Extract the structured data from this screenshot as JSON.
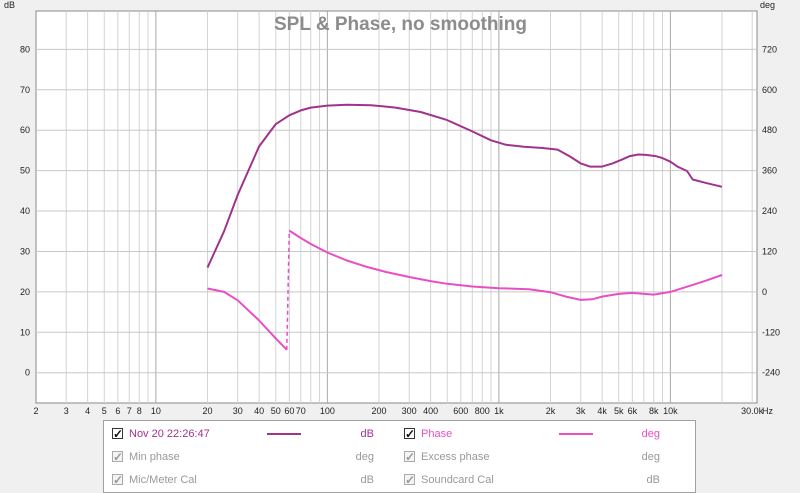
{
  "chart_data": {
    "type": "line",
    "title": "SPL & Phase, no smoothing",
    "left_axis": {
      "label": "dB",
      "min": -7.5,
      "max": 89.5,
      "ticks": [
        0,
        10,
        20,
        30,
        40,
        50,
        60,
        70,
        80
      ]
    },
    "right_axis": {
      "label": "deg",
      "min": -330,
      "max": 834,
      "ticks": [
        -240,
        -120,
        0,
        120,
        240,
        360,
        480,
        600,
        720
      ]
    },
    "x_axis": {
      "scale": "log",
      "min": 2,
      "max": 32000,
      "unit_label": "Hz",
      "ticks": [
        {
          "v": 2,
          "t": "2"
        },
        {
          "v": 3,
          "t": "3"
        },
        {
          "v": 4,
          "t": "4"
        },
        {
          "v": 5,
          "t": "5"
        },
        {
          "v": 6,
          "t": "6"
        },
        {
          "v": 7,
          "t": "7"
        },
        {
          "v": 8,
          "t": "8"
        },
        {
          "v": 10,
          "t": "10"
        },
        {
          "v": 20,
          "t": "20"
        },
        {
          "v": 30,
          "t": "30"
        },
        {
          "v": 40,
          "t": "40"
        },
        {
          "v": 50,
          "t": "50"
        },
        {
          "v": 60,
          "t": "60"
        },
        {
          "v": 70,
          "t": "70"
        },
        {
          "v": 100,
          "t": "100"
        },
        {
          "v": 200,
          "t": "200"
        },
        {
          "v": 300,
          "t": "300"
        },
        {
          "v": 400,
          "t": "400"
        },
        {
          "v": 600,
          "t": "600"
        },
        {
          "v": 800,
          "t": "800"
        },
        {
          "v": 1000,
          "t": "1k"
        },
        {
          "v": 2000,
          "t": "2k"
        },
        {
          "v": 3000,
          "t": "3k"
        },
        {
          "v": 4000,
          "t": "4k"
        },
        {
          "v": 5000,
          "t": "5k"
        },
        {
          "v": 6000,
          "t": "6k"
        },
        {
          "v": 8000,
          "t": "8k"
        },
        {
          "v": 10000,
          "t": "10k"
        },
        {
          "v": 30000,
          "t": "30.0k"
        }
      ]
    },
    "grid": true,
    "series": [
      {
        "name": "Nov 20 22:26:47",
        "unit": "dB",
        "color": "#a0338c",
        "axis": "left",
        "points": [
          [
            20,
            26
          ],
          [
            25,
            35
          ],
          [
            30,
            44
          ],
          [
            40,
            56
          ],
          [
            50,
            61.5
          ],
          [
            60,
            63.7
          ],
          [
            70,
            64.9
          ],
          [
            80,
            65.6
          ],
          [
            100,
            66.1
          ],
          [
            130,
            66.3
          ],
          [
            180,
            66.2
          ],
          [
            250,
            65.6
          ],
          [
            350,
            64.5
          ],
          [
            500,
            62.5
          ],
          [
            700,
            59.7
          ],
          [
            900,
            57.5
          ],
          [
            1100,
            56.4
          ],
          [
            1400,
            55.9
          ],
          [
            1800,
            55.6
          ],
          [
            2200,
            55.2
          ],
          [
            2600,
            53.5
          ],
          [
            3000,
            51.8
          ],
          [
            3400,
            51
          ],
          [
            4000,
            51
          ],
          [
            4600,
            51.8
          ],
          [
            5200,
            52.7
          ],
          [
            5800,
            53.6
          ],
          [
            6500,
            54
          ],
          [
            7200,
            53.9
          ],
          [
            8200,
            53.6
          ],
          [
            9000,
            53.1
          ],
          [
            10000,
            52.2
          ],
          [
            11000,
            51
          ],
          [
            12500,
            49.9
          ],
          [
            13500,
            47.8
          ],
          [
            16000,
            47
          ],
          [
            20000,
            46
          ]
        ]
      },
      {
        "name": "Phase",
        "unit": "deg",
        "color": "#e74fc4",
        "axis": "right",
        "segments": [
          [
            [
              20,
              10
            ],
            [
              25,
              0
            ],
            [
              30,
              -25
            ],
            [
              40,
              -85
            ],
            [
              50,
              -138
            ],
            [
              58,
              -172
            ]
          ],
          [
            [
              60,
              182
            ],
            [
              70,
              160
            ],
            [
              80,
              142
            ],
            [
              100,
              117
            ],
            [
              130,
              93
            ],
            [
              170,
              74
            ],
            [
              220,
              59
            ],
            [
              300,
              44
            ],
            [
              400,
              32
            ],
            [
              500,
              24
            ],
            [
              700,
              16
            ],
            [
              1000,
              11
            ],
            [
              1500,
              8
            ],
            [
              2000,
              -1
            ],
            [
              2500,
              -15
            ],
            [
              3000,
              -24
            ],
            [
              3500,
              -22
            ],
            [
              4000,
              -14
            ],
            [
              5000,
              -6
            ],
            [
              6000,
              -3
            ],
            [
              8000,
              -8
            ],
            [
              10000,
              0
            ],
            [
              13000,
              18
            ],
            [
              16000,
              33
            ],
            [
              20000,
              50
            ]
          ]
        ],
        "dashed_jump": [
          [
            58,
            -172
          ],
          [
            60,
            182
          ]
        ]
      }
    ]
  },
  "legend": {
    "rows": [
      [
        {
          "label": "Nov 20 22:26:47",
          "unit": "dB",
          "checked": true,
          "enabled": true,
          "color": "#a0338c",
          "swatch": true
        },
        {
          "label": "Phase",
          "unit": "deg",
          "checked": true,
          "enabled": true,
          "color": "#e74fc4",
          "swatch": true
        }
      ],
      [
        {
          "label": "Min phase",
          "unit": "deg",
          "checked": true,
          "enabled": false
        },
        {
          "label": "Excess phase",
          "unit": "deg",
          "checked": true,
          "enabled": false
        }
      ],
      [
        {
          "label": "Mic/Meter Cal",
          "unit": "dB",
          "checked": true,
          "enabled": false
        },
        {
          "label": "Soundcard Cal",
          "unit": "dB",
          "checked": true,
          "enabled": false
        }
      ]
    ]
  }
}
